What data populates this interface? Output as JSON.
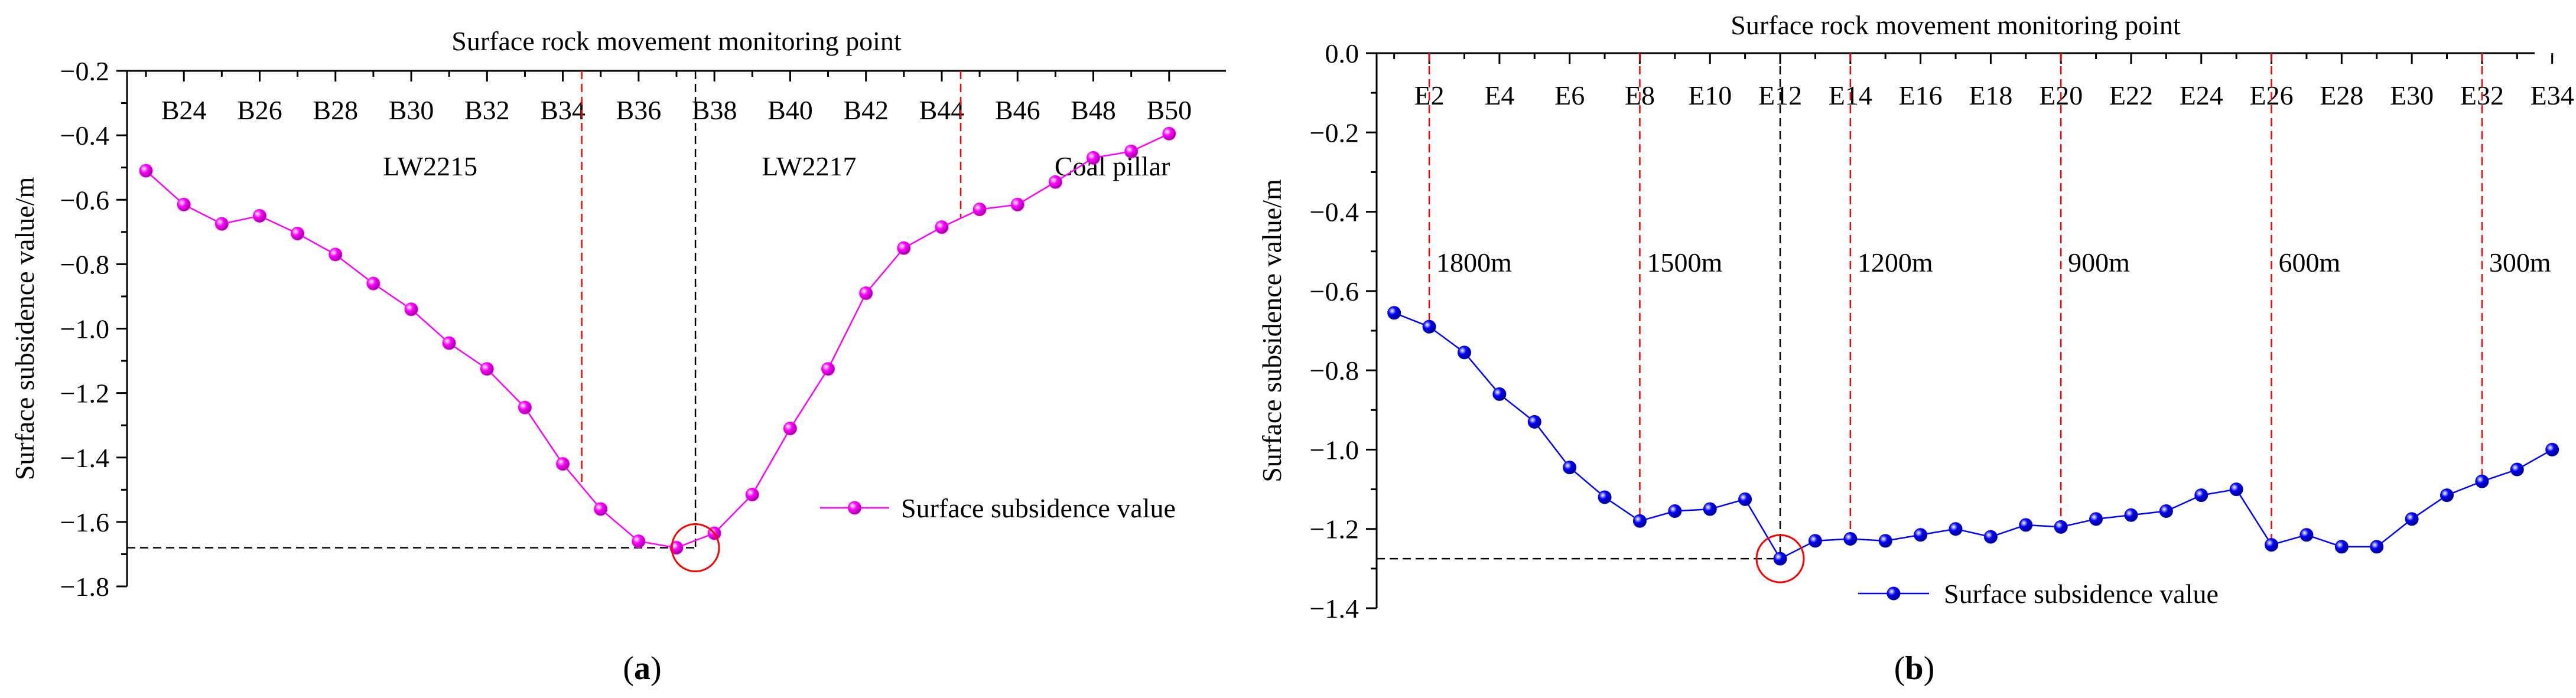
{
  "chart_data": [
    {
      "type": "line",
      "panel_label": "(a)",
      "panel_letter": "a",
      "title": "Surface rock movement monitoring point",
      "xlabel": "Surface rock movement monitoring point",
      "ylabel": "Surface subsidence value/m",
      "ylim": [
        -1.8,
        -0.2
      ],
      "yticks": [
        -1.8,
        -1.6,
        -1.4,
        -1.2,
        -1.0,
        -0.8,
        -0.6,
        -0.4,
        -0.2
      ],
      "xlim": [
        -0.5,
        28.5
      ],
      "x_tick_labels": [
        {
          "x": 1,
          "label": "B24"
        },
        {
          "x": 3,
          "label": "B26"
        },
        {
          "x": 5,
          "label": "B28"
        },
        {
          "x": 7,
          "label": "B30"
        },
        {
          "x": 9,
          "label": "B32"
        },
        {
          "x": 11,
          "label": "B34"
        },
        {
          "x": 13,
          "label": "B36"
        },
        {
          "x": 15,
          "label": "B38"
        },
        {
          "x": 17,
          "label": "B40"
        },
        {
          "x": 19,
          "label": "B42"
        },
        {
          "x": 21,
          "label": "B44"
        },
        {
          "x": 23,
          "label": "B46"
        },
        {
          "x": 25,
          "label": "B48"
        },
        {
          "x": 27,
          "label": "B50"
        }
      ],
      "series": [
        {
          "name": "Surface subsidence value",
          "color": "#ff00ff",
          "values": [
            -0.51,
            -0.615,
            -0.675,
            -0.65,
            -0.705,
            -0.77,
            -0.86,
            -0.94,
            -1.045,
            -1.125,
            -1.245,
            -1.42,
            -1.56,
            -1.66,
            -1.68,
            -1.635,
            -1.515,
            -1.31,
            -1.125,
            -0.89,
            -0.75,
            -0.685,
            -0.63,
            -0.615,
            -0.545,
            -0.47,
            -0.45,
            -0.395
          ]
        }
      ],
      "vlines": [
        {
          "x": 11.5,
          "color": "#ff0000",
          "label": ""
        },
        {
          "x": 14.5,
          "color": "#000000",
          "label": ""
        },
        {
          "x": 21.5,
          "color": "#ff0000",
          "label": ""
        }
      ],
      "annotations": [
        {
          "text": "LW2215",
          "x": 7.5,
          "y": -0.52
        },
        {
          "text": "LW2217",
          "x": 17.5,
          "y": -0.52
        },
        {
          "text": "Coal pillar",
          "x": 25.5,
          "y": -0.52
        }
      ],
      "min_point": {
        "x": 14.5,
        "y": -1.68
      },
      "legend": {
        "label": "Surface subsidence value",
        "placement": "middle-right"
      }
    },
    {
      "type": "line",
      "panel_label": "(b)",
      "panel_letter": "b",
      "title": "Surface rock movement monitoring point",
      "xlabel": "Surface rock movement monitoring point",
      "ylabel": "Surface subsidence value/m",
      "ylim": [
        -1.4,
        0.0
      ],
      "yticks": [
        -1.4,
        -1.2,
        -1.0,
        -0.8,
        -0.6,
        -0.4,
        -0.2,
        0.0
      ],
      "xlim": [
        -0.5,
        32.5
      ],
      "x_tick_labels": [
        {
          "x": 1,
          "label": "E2"
        },
        {
          "x": 3,
          "label": "E4"
        },
        {
          "x": 5,
          "label": "E6"
        },
        {
          "x": 7,
          "label": "E8"
        },
        {
          "x": 9,
          "label": "E10"
        },
        {
          "x": 11,
          "label": "E12"
        },
        {
          "x": 13,
          "label": "E14"
        },
        {
          "x": 15,
          "label": "E16"
        },
        {
          "x": 17,
          "label": "E18"
        },
        {
          "x": 19,
          "label": "E20"
        },
        {
          "x": 21,
          "label": "E22"
        },
        {
          "x": 23,
          "label": "E24"
        },
        {
          "x": 25,
          "label": "E26"
        },
        {
          "x": 27,
          "label": "E28"
        },
        {
          "x": 29,
          "label": "E30"
        },
        {
          "x": 31,
          "label": "E32"
        },
        {
          "x": 33,
          "label": "E34"
        }
      ],
      "series": [
        {
          "name": "Surface subsidence value",
          "color": "#0000ff",
          "values": [
            -0.655,
            -0.69,
            -0.755,
            -0.86,
            -0.93,
            -1.045,
            -1.12,
            -1.18,
            -1.155,
            -1.15,
            -1.125,
            -1.275,
            -1.23,
            -1.225,
            -1.23,
            -1.215,
            -1.2,
            -1.22,
            -1.19,
            -1.195,
            -1.175,
            -1.165,
            -1.155,
            -1.115,
            -1.1,
            -1.24,
            -1.215,
            -1.245,
            -1.245,
            -1.175,
            -1.115,
            -1.08,
            -1.05,
            -1.0
          ]
        }
      ],
      "vlines": [
        {
          "x": 1,
          "color": "#ff0000",
          "label": "1800m"
        },
        {
          "x": 7,
          "color": "#ff0000",
          "label": "1500m"
        },
        {
          "x": 11,
          "color": "#000000",
          "label": ""
        },
        {
          "x": 13,
          "color": "#ff0000",
          "label": "1200m"
        },
        {
          "x": 19,
          "color": "#ff0000",
          "label": "900m"
        },
        {
          "x": 25,
          "color": "#ff0000",
          "label": "600m"
        },
        {
          "x": 31,
          "color": "#ff0000",
          "label": "300m"
        }
      ],
      "annotations": [],
      "min_point": {
        "x": 11,
        "y": -1.275
      },
      "legend": {
        "label": "Surface subsidence value",
        "placement": "bottom-center"
      }
    }
  ]
}
